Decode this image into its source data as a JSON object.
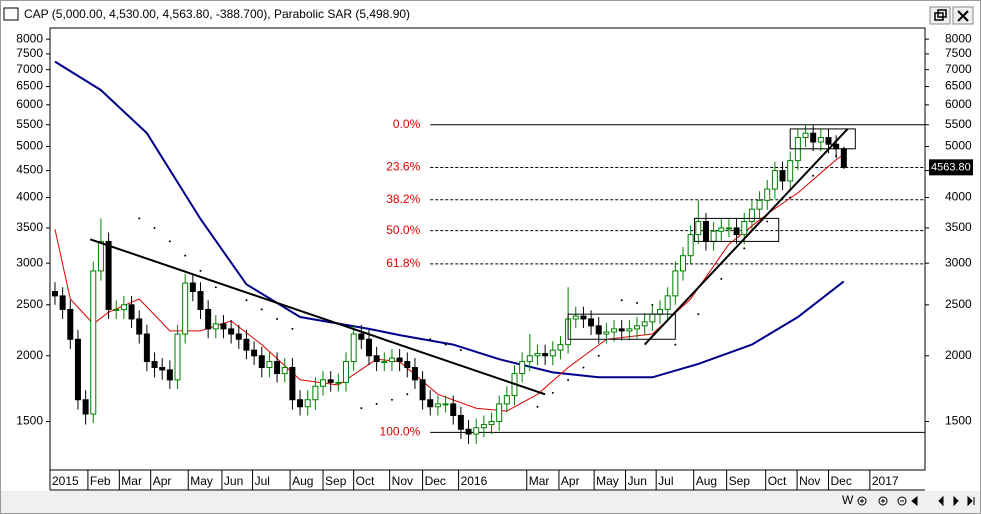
{
  "chart_data": {
    "type": "candlestick",
    "title": "CAP (5,000.00, 4,530.00, 4,563.80, -388.700), Parabolic SAR (5,498.90)",
    "ohlc": [
      [
        2650,
        2760,
        2500,
        2600
      ],
      [
        2600,
        2700,
        2350,
        2450
      ],
      [
        2450,
        2550,
        2060,
        2150
      ],
      [
        2150,
        2240,
        1580,
        1650
      ],
      [
        1650,
        1720,
        1480,
        1550
      ],
      [
        1550,
        3020,
        1490,
        2900
      ],
      [
        2900,
        3650,
        2780,
        3300
      ],
      [
        3300,
        3430,
        2350,
        2450
      ],
      [
        2450,
        2550,
        2350,
        2450
      ],
      [
        2450,
        2600,
        2350,
        2500
      ],
      [
        2500,
        2600,
        2260,
        2350
      ],
      [
        2350,
        2440,
        2110,
        2200
      ],
      [
        2200,
        2290,
        1870,
        1950
      ],
      [
        1950,
        2030,
        1820,
        1900
      ],
      [
        1900,
        1980,
        1800,
        1880
      ],
      [
        1880,
        1960,
        1730,
        1800
      ],
      [
        1800,
        2290,
        1730,
        2200
      ],
      [
        2200,
        2860,
        2110,
        2750
      ],
      [
        2750,
        2860,
        2540,
        2650
      ],
      [
        2650,
        2760,
        2350,
        2450
      ],
      [
        2450,
        2550,
        2160,
        2250
      ],
      [
        2250,
        2390,
        2160,
        2300
      ],
      [
        2300,
        2390,
        2160,
        2250
      ],
      [
        2250,
        2340,
        2110,
        2200
      ],
      [
        2200,
        2290,
        2060,
        2150
      ],
      [
        2150,
        2240,
        1970,
        2050
      ],
      [
        2050,
        2130,
        1920,
        2000
      ],
      [
        2000,
        2080,
        1820,
        1900
      ],
      [
        1900,
        2030,
        1820,
        1950
      ],
      [
        1950,
        2030,
        1780,
        1850
      ],
      [
        1850,
        1980,
        1780,
        1900
      ],
      [
        1900,
        1980,
        1580,
        1650
      ],
      [
        1650,
        1720,
        1540,
        1600
      ],
      [
        1600,
        1720,
        1540,
        1650
      ],
      [
        1650,
        1820,
        1580,
        1750
      ],
      [
        1750,
        1870,
        1680,
        1800
      ],
      [
        1800,
        1870,
        1710,
        1780
      ],
      [
        1780,
        1850,
        1710,
        1780
      ],
      [
        1780,
        2030,
        1710,
        1950
      ],
      [
        1950,
        2290,
        1870,
        2200
      ],
      [
        2200,
        2290,
        2060,
        2150
      ],
      [
        2150,
        2240,
        1920,
        2000
      ],
      [
        2000,
        2080,
        1870,
        1950
      ],
      [
        1950,
        2030,
        1870,
        1950
      ],
      [
        1950,
        2060,
        1870,
        1980
      ],
      [
        1980,
        2060,
        1870,
        1950
      ],
      [
        1950,
        2030,
        1820,
        1900
      ],
      [
        1900,
        1980,
        1730,
        1800
      ],
      [
        1800,
        1870,
        1580,
        1650
      ],
      [
        1650,
        1720,
        1540,
        1600
      ],
      [
        1600,
        1680,
        1540,
        1620
      ],
      [
        1620,
        1680,
        1560,
        1620
      ],
      [
        1620,
        1680,
        1480,
        1540
      ],
      [
        1540,
        1600,
        1390,
        1450
      ],
      [
        1450,
        1510,
        1360,
        1420
      ],
      [
        1420,
        1520,
        1360,
        1460
      ],
      [
        1460,
        1540,
        1400,
        1480
      ],
      [
        1480,
        1560,
        1420,
        1500
      ],
      [
        1500,
        1680,
        1440,
        1620
      ],
      [
        1620,
        1750,
        1560,
        1680
      ],
      [
        1680,
        1920,
        1610,
        1850
      ],
      [
        1850,
        2030,
        1780,
        1950
      ],
      [
        1950,
        2200,
        1870,
        2000
      ],
      [
        2000,
        2100,
        1920,
        2020
      ],
      [
        2020,
        2100,
        1920,
        2000
      ],
      [
        2000,
        2130,
        1920,
        2050
      ],
      [
        2050,
        2180,
        1970,
        2100
      ],
      [
        2100,
        2700,
        2020,
        2350
      ],
      [
        2350,
        2480,
        2260,
        2380
      ],
      [
        2380,
        2480,
        2260,
        2350
      ],
      [
        2350,
        2440,
        2190,
        2280
      ],
      [
        2280,
        2370,
        2110,
        2200
      ],
      [
        2200,
        2310,
        2110,
        2220
      ],
      [
        2220,
        2340,
        2130,
        2250
      ],
      [
        2250,
        2340,
        2140,
        2230
      ],
      [
        2230,
        2340,
        2140,
        2250
      ],
      [
        2250,
        2370,
        2160,
        2280
      ],
      [
        2280,
        2410,
        2190,
        2320
      ],
      [
        2320,
        2500,
        2230,
        2400
      ],
      [
        2400,
        2550,
        2300,
        2450
      ],
      [
        2450,
        2700,
        2350,
        2600
      ],
      [
        2600,
        3020,
        2500,
        2900
      ],
      [
        2900,
        3220,
        2780,
        3100
      ],
      [
        3100,
        3540,
        2980,
        3400
      ],
      [
        3400,
        3950,
        3260,
        3600
      ],
      [
        3600,
        3740,
        3170,
        3300
      ],
      [
        3300,
        3590,
        3170,
        3450
      ],
      [
        3450,
        3640,
        3310,
        3500
      ],
      [
        3500,
        3640,
        3360,
        3500
      ],
      [
        3500,
        3640,
        3260,
        3400
      ],
      [
        3400,
        3740,
        3260,
        3600
      ],
      [
        3600,
        3950,
        3460,
        3800
      ],
      [
        3800,
        4110,
        3650,
        3950
      ],
      [
        3950,
        4320,
        3790,
        4150
      ],
      [
        4150,
        4680,
        3980,
        4500
      ],
      [
        4500,
        4680,
        4130,
        4300
      ],
      [
        4300,
        4890,
        4130,
        4700
      ],
      [
        4700,
        5410,
        4510,
        5200
      ],
      [
        5200,
        5510,
        4990,
        5300
      ],
      [
        5300,
        5510,
        4900,
        5100
      ],
      [
        5100,
        5410,
        4900,
        5200
      ],
      [
        5200,
        5410,
        4850,
        5050
      ],
      [
        5050,
        5250,
        4750,
        4952.5
      ],
      [
        4952.5,
        5000,
        4530,
        4563.8
      ]
    ],
    "up_color": "#008000",
    "down_color": "#000000",
    "last_label": "4563.80",
    "lines": [
      {
        "color": "#00008b",
        "x": [
          0,
          6,
          12,
          19,
          25,
          32,
          41,
          45,
          52,
          58,
          65,
          71,
          78,
          84,
          91,
          97,
          103
        ],
        "values": [
          7250,
          6400,
          5300,
          3640,
          2735,
          2370,
          2250,
          2190,
          2100,
          1970,
          1860,
          1820,
          1820,
          1930,
          2100,
          2370,
          2770
        ]
      },
      {
        "color": "#dd0000",
        "x": [
          0,
          2,
          5,
          7,
          11,
          15,
          19,
          23,
          27,
          32,
          37,
          42,
          45,
          50,
          55,
          59,
          63,
          67,
          72,
          78,
          83,
          88,
          93,
          97,
          102,
          103
        ],
        "values": [
          3480,
          2565,
          2300,
          2420,
          2565,
          2230,
          2230,
          2330,
          2100,
          1800,
          1760,
          1970,
          1950,
          1690,
          1590,
          1570,
          1690,
          1900,
          2150,
          2200,
          2565,
          3260,
          3720,
          4080,
          4720,
          4830
        ]
      }
    ],
    "sar": {
      "color": "#000000",
      "x": [
        11,
        13,
        15,
        17,
        19,
        21,
        23,
        25,
        27,
        29,
        31,
        40,
        42,
        44,
        46,
        49,
        51,
        53,
        63,
        65,
        67,
        69,
        71,
        74,
        76,
        78,
        81,
        84,
        87,
        90,
        93,
        96,
        99,
        102
      ],
      "values": [
        3650,
        3500,
        3300,
        3100,
        2900,
        2700,
        2700,
        2550,
        2450,
        2350,
        2250,
        1590,
        1620,
        1650,
        1690,
        2150,
        2100,
        2050,
        1600,
        1700,
        1800,
        1900,
        2000,
        2550,
        2520,
        2500,
        2100,
        2400,
        2800,
        3200,
        3600,
        4000,
        4400,
        4800
      ]
    },
    "trendlines": [
      {
        "x": [
          4.6,
          64
        ],
        "values": [
          3330,
          1690
        ]
      },
      {
        "x": [
          77,
          103.5
        ],
        "values": [
          2100,
          5400
        ]
      }
    ],
    "boxes": [
      {
        "x": [
          67,
          81
        ],
        "values": [
          2400,
          2150
        ]
      },
      {
        "x": [
          83.5,
          94.5
        ],
        "values": [
          3650,
          3300
        ]
      },
      {
        "x": [
          96,
          104.5
        ],
        "values": [
          5400,
          4950
        ]
      }
    ],
    "fib": {
      "start": 49,
      "labels": [
        "0.0%",
        "23.6%",
        "38.2%",
        "50.0%",
        "61.8%",
        "100.0%"
      ],
      "values": [
        5500,
        4560,
        3960,
        3460,
        2990,
        1430
      ]
    },
    "log_scale": true,
    "ylim": [
      1213,
      8400
    ],
    "yticks": [
      1500,
      2000,
      2500,
      3000,
      3500,
      4000,
      4500,
      5000,
      5500,
      6000,
      6500,
      7000,
      7500,
      8000
    ],
    "xlim": [
      -0.65,
      113.6
    ],
    "xticks": [
      {
        "value": -0.65,
        "label": "2015"
      },
      {
        "value": 4.3,
        "label": "Feb"
      },
      {
        "value": 8.4,
        "label": "Mar"
      },
      {
        "value": 12.5,
        "label": "Apr"
      },
      {
        "value": 17.4,
        "label": "May"
      },
      {
        "value": 21.8,
        "label": "Jun"
      },
      {
        "value": 25.8,
        "label": "Jul"
      },
      {
        "value": 30.7,
        "label": "Aug"
      },
      {
        "value": 35,
        "label": "Sep"
      },
      {
        "value": 39,
        "label": "Oct"
      },
      {
        "value": 43.7,
        "label": "Nov"
      },
      {
        "value": 48,
        "label": "Dec"
      },
      {
        "value": 52.7,
        "label": "2016"
      },
      {
        "value": 61.6,
        "label": "Mar"
      },
      {
        "value": 65.8,
        "label": "Apr"
      },
      {
        "value": 70.4,
        "label": "May"
      },
      {
        "value": 74.5,
        "label": "Jun"
      },
      {
        "value": 78.5,
        "label": "Jul"
      },
      {
        "value": 83.4,
        "label": "Aug"
      },
      {
        "value": 87.7,
        "label": "Sep"
      },
      {
        "value": 92.8,
        "label": "Oct"
      },
      {
        "value": 96.9,
        "label": "Nov"
      },
      {
        "value": 101,
        "label": "Dec"
      },
      {
        "value": 106.4,
        "label": "2017"
      }
    ]
  },
  "ui": {
    "period": "W"
  }
}
